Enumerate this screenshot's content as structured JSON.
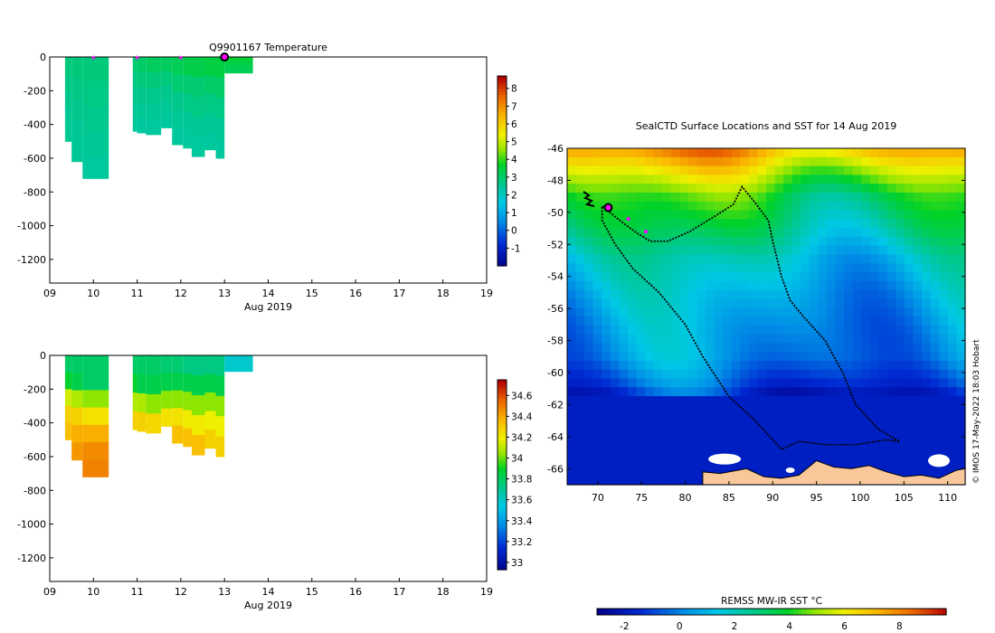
{
  "chart_data": [
    {
      "id": "temperature",
      "type": "heatmap",
      "title": "Q9901167  Temperature",
      "xlabel": "Aug 2019",
      "x_ticks": [
        "09",
        "10",
        "11",
        "12",
        "13",
        "14",
        "15",
        "16",
        "17",
        "18",
        "19"
      ],
      "xlim": [
        9,
        19
      ],
      "y_ticks": [
        "0",
        "-200",
        "-400",
        "-600",
        "-800",
        "-1000",
        "-1200"
      ],
      "ylim": [
        -1340,
        0
      ],
      "colorbar": {
        "min": -2,
        "max": 8.7,
        "ticks": [
          "-1",
          "0",
          "1",
          "2",
          "3",
          "4",
          "5",
          "6",
          "7",
          "8"
        ]
      },
      "markers_x": [
        10.0,
        11.0,
        12.0
      ],
      "current_x": 13.0,
      "profiles": [
        {
          "x0": 9.35,
          "x1": 9.5,
          "depth": 500,
          "temp": [
            2.9,
            2.8,
            2.7,
            2.6,
            2.6
          ]
        },
        {
          "x0": 9.5,
          "x1": 9.75,
          "depth": 620,
          "temp": [
            2.9,
            2.8,
            2.7,
            2.6,
            2.6
          ]
        },
        {
          "x0": 9.75,
          "x1": 10.35,
          "depth": 720,
          "temp": [
            2.9,
            2.8,
            2.7,
            2.6,
            2.5
          ]
        },
        {
          "x0": 10.9,
          "x1": 11.0,
          "depth": 440,
          "temp": [
            3.0,
            2.8,
            2.7,
            2.6,
            2.5
          ]
        },
        {
          "x0": 11.0,
          "x1": 11.2,
          "depth": 450,
          "temp": [
            3.1,
            2.9,
            2.7,
            2.6,
            2.5
          ]
        },
        {
          "x0": 11.2,
          "x1": 11.55,
          "depth": 460,
          "temp": [
            3.2,
            2.9,
            2.7,
            2.6,
            2.5
          ]
        },
        {
          "x0": 11.55,
          "x1": 11.8,
          "depth": 420,
          "temp": [
            3.2,
            2.9,
            2.7,
            2.6,
            2.5
          ]
        },
        {
          "x0": 11.8,
          "x1": 12.05,
          "depth": 520,
          "temp": [
            3.3,
            3.0,
            2.7,
            2.6,
            2.5
          ]
        },
        {
          "x0": 12.05,
          "x1": 12.25,
          "depth": 540,
          "temp": [
            3.4,
            3.0,
            2.8,
            2.6,
            2.5
          ]
        },
        {
          "x0": 12.25,
          "x1": 12.55,
          "depth": 590,
          "temp": [
            3.4,
            3.0,
            2.8,
            2.6,
            2.5
          ]
        },
        {
          "x0": 12.55,
          "x1": 12.8,
          "depth": 550,
          "temp": [
            3.5,
            3.1,
            2.8,
            2.6,
            2.5
          ]
        },
        {
          "x0": 12.8,
          "x1": 13.0,
          "depth": 600,
          "temp": [
            3.5,
            3.1,
            2.8,
            2.6,
            2.5
          ]
        },
        {
          "x0": 13.0,
          "x1": 13.65,
          "depth": 95,
          "temp": [
            3.7,
            3.5,
            3.4,
            3.3,
            3.3
          ]
        }
      ]
    },
    {
      "id": "salinity",
      "type": "heatmap",
      "title": "",
      "xlabel": "Aug 2019",
      "x_ticks": [
        "09",
        "10",
        "11",
        "12",
        "13",
        "14",
        "15",
        "16",
        "17",
        "18",
        "19"
      ],
      "xlim": [
        9,
        19
      ],
      "y_ticks": [
        "0",
        "-200",
        "-400",
        "-600",
        "-800",
        "-1000",
        "-1200"
      ],
      "ylim": [
        -1340,
        0
      ],
      "colorbar": {
        "min": 32.93,
        "max": 34.75,
        "ticks": [
          "33",
          "33.2",
          "33.4",
          "33.6",
          "33.8",
          "34",
          "34.2",
          "34.4",
          "34.6"
        ]
      },
      "profiles": [
        {
          "x0": 9.35,
          "x1": 9.5,
          "depth": 500,
          "sal": [
            33.8,
            33.9,
            34.15,
            34.3,
            34.35
          ]
        },
        {
          "x0": 9.5,
          "x1": 9.75,
          "depth": 620,
          "sal": [
            33.8,
            33.85,
            34.1,
            34.3,
            34.4,
            34.45
          ]
        },
        {
          "x0": 9.75,
          "x1": 10.35,
          "depth": 720,
          "sal": [
            33.8,
            33.8,
            34.05,
            34.25,
            34.4,
            34.48,
            34.5
          ]
        },
        {
          "x0": 10.9,
          "x1": 11.0,
          "depth": 440,
          "sal": [
            33.8,
            33.9,
            34.1,
            34.3
          ]
        },
        {
          "x0": 11.0,
          "x1": 11.2,
          "depth": 450,
          "sal": [
            33.8,
            33.85,
            34.1,
            34.3
          ]
        },
        {
          "x0": 11.2,
          "x1": 11.55,
          "depth": 460,
          "sal": [
            33.8,
            33.85,
            34.05,
            34.28
          ]
        },
        {
          "x0": 11.55,
          "x1": 11.8,
          "depth": 420,
          "sal": [
            33.78,
            33.85,
            34.05,
            34.25
          ]
        },
        {
          "x0": 11.8,
          "x1": 12.05,
          "depth": 520,
          "sal": [
            33.78,
            33.85,
            34.05,
            34.25,
            34.35
          ]
        },
        {
          "x0": 12.05,
          "x1": 12.25,
          "depth": 540,
          "sal": [
            33.75,
            33.85,
            34.05,
            34.22,
            34.35
          ]
        },
        {
          "x0": 12.25,
          "x1": 12.55,
          "depth": 590,
          "sal": [
            33.75,
            33.85,
            34.05,
            34.22,
            34.35
          ]
        },
        {
          "x0": 12.55,
          "x1": 12.8,
          "depth": 550,
          "sal": [
            33.75,
            33.85,
            34.05,
            34.2,
            34.3
          ]
        },
        {
          "x0": 12.8,
          "x1": 13.0,
          "depth": 600,
          "sal": [
            33.75,
            33.85,
            34.05,
            34.2,
            34.3
          ]
        },
        {
          "x0": 13.0,
          "x1": 13.65,
          "depth": 95,
          "sal": [
            33.6,
            33.6
          ]
        }
      ]
    },
    {
      "id": "sst_map",
      "type": "heatmap",
      "title": "SealCTD Surface Locations and SST for 14 Aug 2019",
      "x_ticks": [
        "70",
        "75",
        "80",
        "85",
        "90",
        "95",
        "100",
        "105",
        "110"
      ],
      "xlim": [
        66.5,
        112
      ],
      "y_ticks": [
        "-46",
        "-48",
        "-50",
        "-52",
        "-54",
        "-56",
        "-58",
        "-60",
        "-62",
        "-64",
        "-66"
      ],
      "ylim": [
        -67,
        -46
      ],
      "sst_band_lat": [
        -46,
        -47.5,
        -49,
        -51,
        -53,
        -55,
        -57,
        -59,
        -60.5,
        -61.5
      ],
      "sst_band_val": [
        7.5,
        5.5,
        3.8,
        2.8,
        1.5,
        0.8,
        0.3,
        0.0,
        -0.8,
        -1.8
      ],
      "track": [
        [
          70.5,
          -49.6
        ],
        [
          72.5,
          -50.5
        ],
        [
          74.5,
          -51.3
        ],
        [
          76,
          -51.8
        ],
        [
          78,
          -51.8
        ],
        [
          80.5,
          -51.2
        ],
        [
          83.5,
          -50.2
        ],
        [
          85.5,
          -49.5
        ],
        [
          86.5,
          -48.4
        ],
        [
          88,
          -49.4
        ],
        [
          89.5,
          -50.5
        ],
        [
          90,
          -51.8
        ],
        [
          91,
          -54
        ],
        [
          92,
          -55.5
        ],
        [
          93.5,
          -56.5
        ],
        [
          96,
          -58
        ],
        [
          98,
          -60
        ],
        [
          99.5,
          -62
        ],
        [
          102,
          -63.5
        ],
        [
          104.5,
          -64.3
        ],
        [
          103,
          -64.2
        ],
        [
          99.5,
          -64.5
        ],
        [
          96,
          -64.5
        ],
        [
          93,
          -64.3
        ],
        [
          91,
          -64.8
        ],
        [
          88,
          -63
        ],
        [
          85,
          -61.5
        ],
        [
          82,
          -59
        ],
        [
          80,
          -57
        ],
        [
          77,
          -55
        ],
        [
          74,
          -53.5
        ],
        [
          72,
          -52
        ],
        [
          70.5,
          -50.5
        ],
        [
          70.5,
          -49.6
        ]
      ],
      "markers": [
        [
          73.5,
          -50.4
        ],
        [
          75.5,
          -51.2
        ]
      ],
      "current": [
        71.2,
        -49.7
      ],
      "colorbar_label": "REMSS MW-IR SST °C",
      "colorbar": {
        "min": -3,
        "max": 9.7,
        "ticks": [
          "-2",
          "0",
          "2",
          "4",
          "6",
          "8"
        ]
      }
    }
  ],
  "credit": "© IMOS 17-May-2022 18:03 Hobart"
}
